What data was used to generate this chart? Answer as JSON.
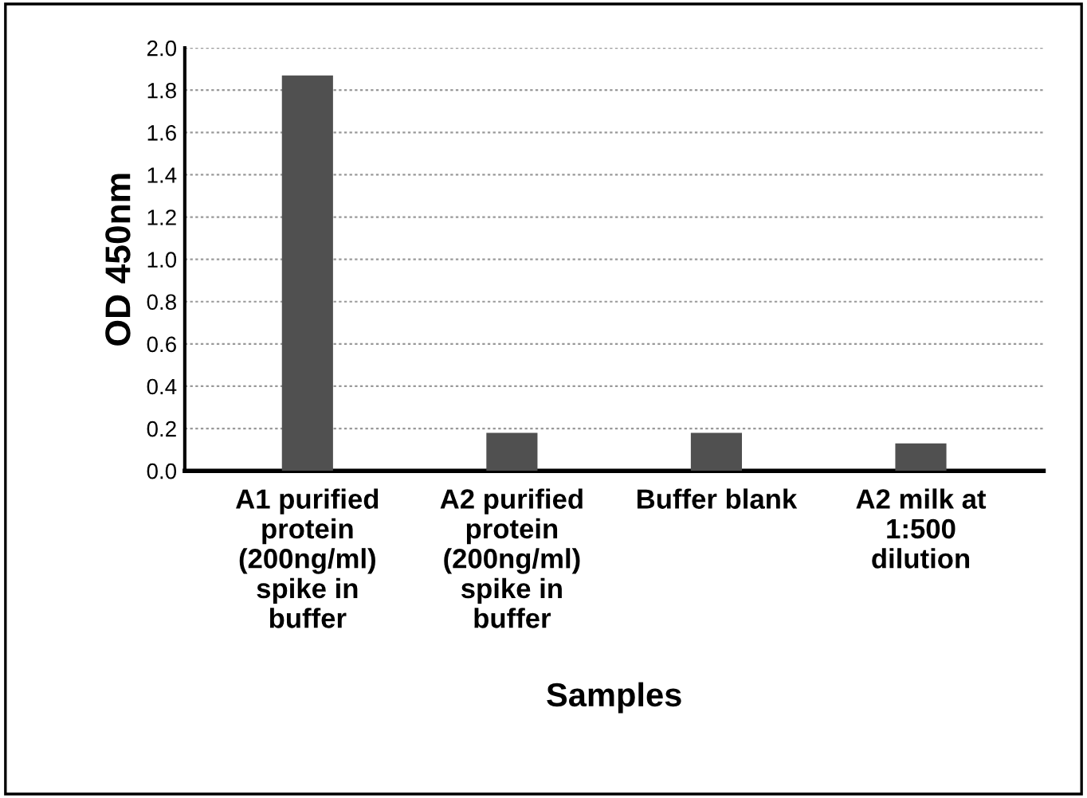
{
  "chart_data": {
    "type": "bar",
    "xlabel": "Samples",
    "ylabel": "OD 450nm",
    "categories": [
      "A1 purified\nprotein\n(200ng/ml)\nspike in\nbuffer",
      "A2 purified\nprotein\n(200ng/ml)\nspike in\nbuffer",
      "Buffer blank",
      "A2 milk at\n1:500\ndilution"
    ],
    "values": [
      1.87,
      0.18,
      0.18,
      0.13
    ],
    "color": "#505050",
    "ylim": [
      0,
      2.0
    ],
    "yticks": [
      {
        "value": 0,
        "label": "0.0"
      },
      {
        "value": 0.2,
        "label": "0.2"
      },
      {
        "value": 0.4,
        "label": "0.4"
      },
      {
        "value": 0.6,
        "label": "0.6"
      },
      {
        "value": 0.8,
        "label": "0.8"
      },
      {
        "value": 1.0,
        "label": "1.0"
      },
      {
        "value": 1.2,
        "label": "1.2"
      },
      {
        "value": 1.4,
        "label": "1.4"
      },
      {
        "value": 1.6,
        "label": "1.6"
      },
      {
        "value": 1.8,
        "label": "1.8"
      },
      {
        "value": 2.0,
        "label": "2.0"
      }
    ],
    "grid": "y"
  }
}
